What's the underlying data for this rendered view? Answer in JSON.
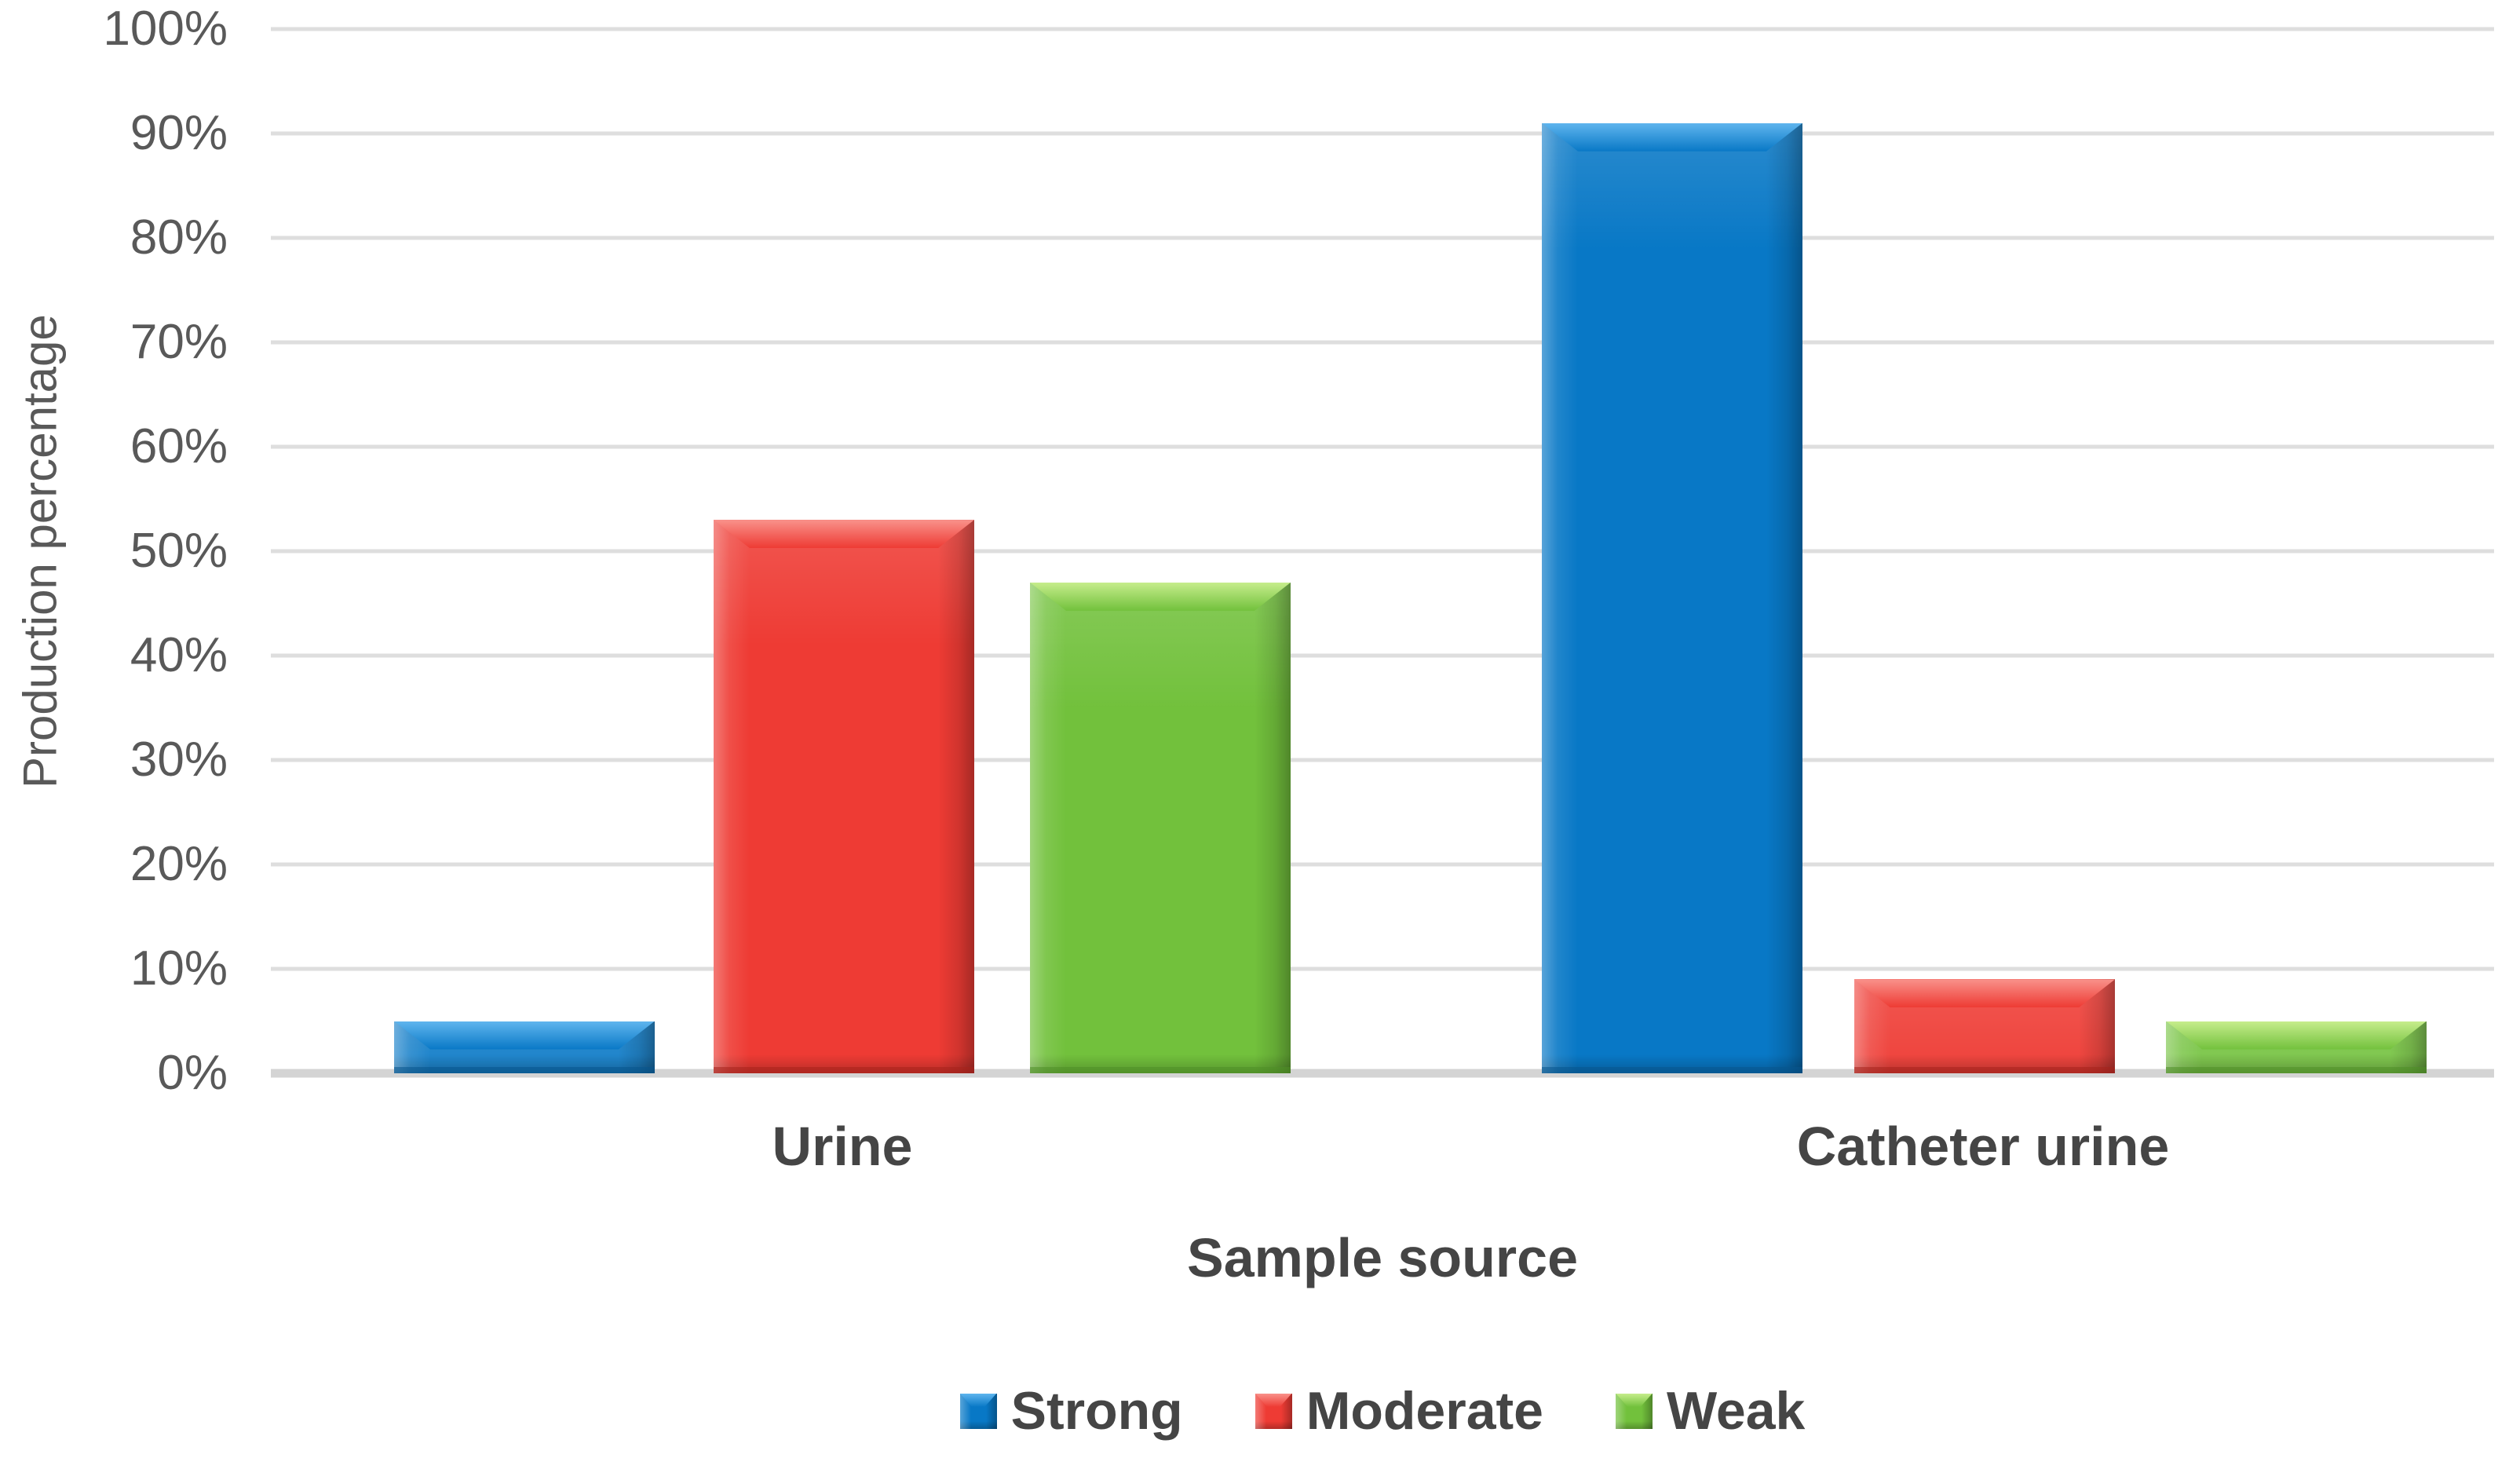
{
  "chart_data": {
    "type": "bar",
    "title": "",
    "xlabel": "Sample source",
    "ylabel": "Production percentage",
    "categories": [
      "Urine",
      "Catheter urine"
    ],
    "series": [
      {
        "name": "Strong",
        "color": "#0878C6",
        "color_light": "#5FB5EE",
        "color_dark": "#07558E",
        "values": [
          5,
          91
        ]
      },
      {
        "name": "Moderate",
        "color": "#EE3B34",
        "color_light": "#F9928B",
        "color_dark": "#A8221C",
        "values": [
          53,
          9
        ]
      },
      {
        "name": "Weak",
        "color": "#72C13C",
        "color_light": "#C6ED8C",
        "color_dark": "#4E8F26",
        "values": [
          47,
          5
        ]
      }
    ],
    "ylim": [
      0,
      100
    ],
    "ytick_step": 10,
    "yticks": [
      "0%",
      "10%",
      "20%",
      "30%",
      "40%",
      "50%",
      "60%",
      "70%",
      "80%",
      "90%",
      "100%"
    ],
    "grid": true,
    "gridline_color": "#DEDEDE",
    "axis_line_color": "#D4D4D4",
    "tick_text_color": "#595959",
    "label_text_color": "#454545",
    "legend_position": "bottom"
  }
}
